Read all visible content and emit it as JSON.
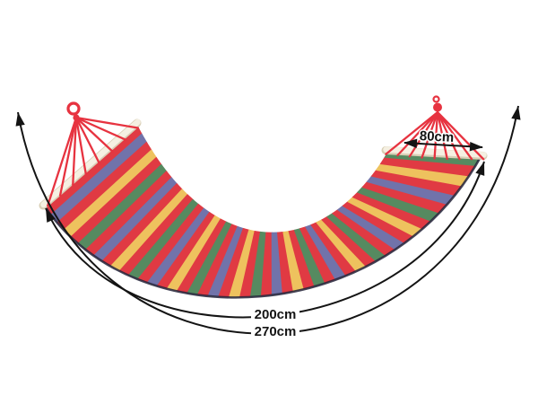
{
  "image": {
    "description": "Striped fabric hammock with wooden spreader bars, annotated with dimensions",
    "background": "#ffffff"
  },
  "dimensions": {
    "bar_width": {
      "label": "80cm"
    },
    "bed_length": {
      "label": "200cm"
    },
    "total_length": {
      "label": "270cm"
    }
  },
  "hammock": {
    "stripe_count": 48,
    "stripe_pattern": [
      "red",
      "blue",
      "red",
      "yellow",
      "red",
      "green"
    ],
    "colors": {
      "red": "#e03a43",
      "blue": "#7173aa",
      "yellow": "#eec25e",
      "green": "#568a60",
      "rope": "#e73340",
      "bar": "#f5f0e2",
      "bar_edge": "#d9cfb6",
      "edge_shadow": "#23233a"
    }
  },
  "annotation": {
    "color": "#141414"
  }
}
